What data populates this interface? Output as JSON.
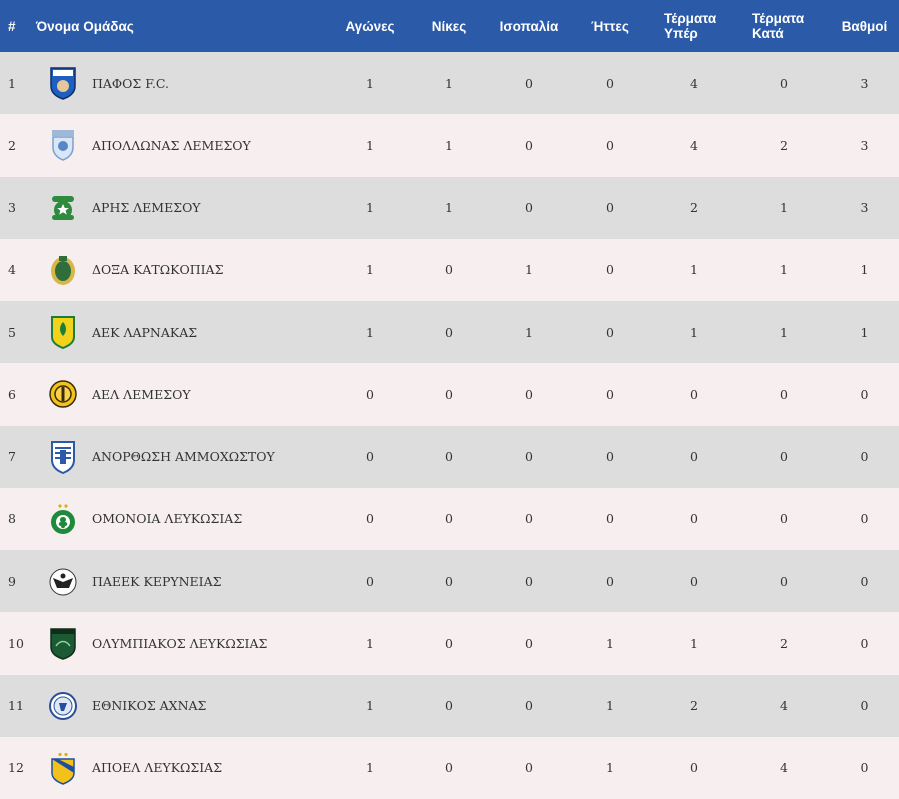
{
  "header": {
    "rank": "#",
    "team": "Όνομα Ομάδας",
    "played": "Αγώνες",
    "wins": "Νίκες",
    "draws": "Ισοπαλία",
    "losses": "Ήττες",
    "goals_for_1": "Τέρματα",
    "goals_for_2": "Υπέρ",
    "goals_against_1": "Τέρματα",
    "goals_against_2": "Κατά",
    "points": "Βαθμοί"
  },
  "rows": [
    {
      "rank": "1",
      "team": "ΠΑΦΟΣ F.C.",
      "logo": "pafos-crest-icon",
      "played": "1",
      "wins": "1",
      "draws": "0",
      "losses": "0",
      "gf": "4",
      "ga": "0",
      "pts": "3"
    },
    {
      "rank": "2",
      "team": "ΑΠΟΛΛΩΝΑΣ ΛΕΜΕΣΟΥ",
      "logo": "apollon-crest-icon",
      "played": "1",
      "wins": "1",
      "draws": "0",
      "losses": "0",
      "gf": "4",
      "ga": "2",
      "pts": "3"
    },
    {
      "rank": "3",
      "team": "ΑΡΗΣ ΛΕΜΕΣΟΥ",
      "logo": "aris-crest-icon",
      "played": "1",
      "wins": "1",
      "draws": "0",
      "losses": "0",
      "gf": "2",
      "ga": "1",
      "pts": "3"
    },
    {
      "rank": "4",
      "team": "ΔΟΞΑ ΚΑΤΩΚΟΠΙΑΣ",
      "logo": "doxa-crest-icon",
      "played": "1",
      "wins": "0",
      "draws": "1",
      "losses": "0",
      "gf": "1",
      "ga": "1",
      "pts": "1"
    },
    {
      "rank": "5",
      "team": "ΑΕΚ ΛΑΡΝΑΚΑΣ",
      "logo": "aek-crest-icon",
      "played": "1",
      "wins": "0",
      "draws": "1",
      "losses": "0",
      "gf": "1",
      "ga": "1",
      "pts": "1"
    },
    {
      "rank": "6",
      "team": "ΑΕΛ ΛΕΜΕΣΟΥ",
      "logo": "ael-crest-icon",
      "played": "0",
      "wins": "0",
      "draws": "0",
      "losses": "0",
      "gf": "0",
      "ga": "0",
      "pts": "0"
    },
    {
      "rank": "7",
      "team": "ΑΝΟΡΘΩΣΗ ΑΜΜΟΧΩΣΤΟΥ",
      "logo": "anorthosis-crest-icon",
      "played": "0",
      "wins": "0",
      "draws": "0",
      "losses": "0",
      "gf": "0",
      "ga": "0",
      "pts": "0"
    },
    {
      "rank": "8",
      "team": "ΟΜΟΝΟΙΑ ΛΕΥΚΩΣΙΑΣ",
      "logo": "omonoia-crest-icon",
      "played": "0",
      "wins": "0",
      "draws": "0",
      "losses": "0",
      "gf": "0",
      "ga": "0",
      "pts": "0"
    },
    {
      "rank": "9",
      "team": "ΠΑΕΕΚ ΚΕΡΥΝΕΙΑΣ",
      "logo": "paeek-crest-icon",
      "played": "0",
      "wins": "0",
      "draws": "0",
      "losses": "0",
      "gf": "0",
      "ga": "0",
      "pts": "0"
    },
    {
      "rank": "10",
      "team": "ΟΛΥΜΠΙΑΚΟΣ ΛΕΥΚΩΣΙΑΣ",
      "logo": "olympiakos-crest-icon",
      "played": "1",
      "wins": "0",
      "draws": "0",
      "losses": "1",
      "gf": "1",
      "ga": "2",
      "pts": "0"
    },
    {
      "rank": "11",
      "team": "ΕΘΝΙΚΟΣ ΑΧΝΑΣ",
      "logo": "ethnikos-crest-icon",
      "played": "1",
      "wins": "0",
      "draws": "0",
      "losses": "1",
      "gf": "2",
      "ga": "4",
      "pts": "0"
    },
    {
      "rank": "12",
      "team": "ΑΠΟΕΛ ΛΕΥΚΩΣΙΑΣ",
      "logo": "apoel-crest-icon",
      "played": "1",
      "wins": "0",
      "draws": "0",
      "losses": "1",
      "gf": "0",
      "ga": "4",
      "pts": "0"
    }
  ],
  "colors": {
    "header_bg": "#2a5aa8",
    "row_odd": "#dddddd",
    "row_even": "#f7efef",
    "text": "#333333"
  }
}
